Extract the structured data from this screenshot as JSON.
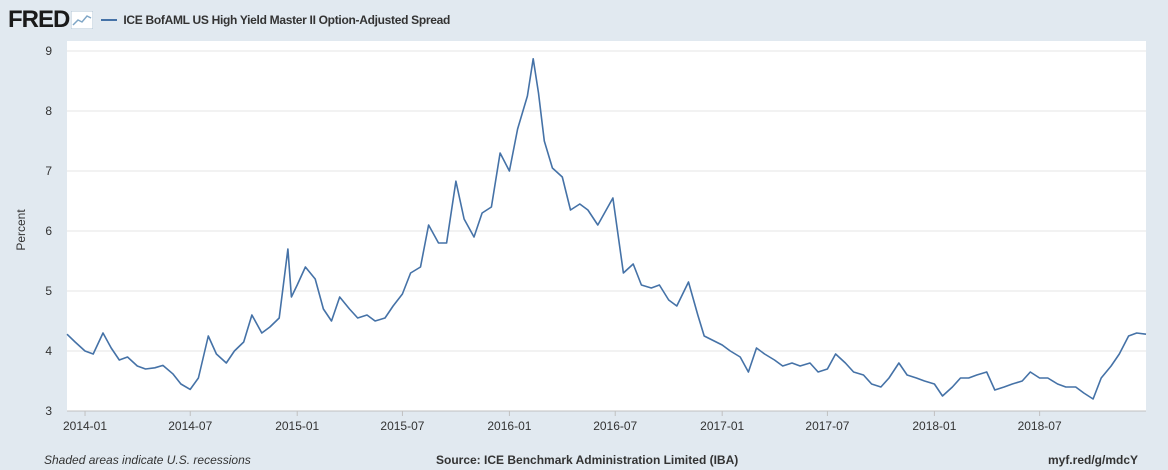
{
  "brand": {
    "logo_text": "FRED"
  },
  "footer": {
    "recession_note": "Shaded areas indicate U.S. recessions",
    "source": "Source: ICE Benchmark Administration Limited (IBA)",
    "short_url": "myf.red/g/mdcY"
  },
  "colors": {
    "line": "#4572a7",
    "background": "#e1e9f0",
    "plot_bg": "#ffffff",
    "grid": "#e6e6e6"
  },
  "chart_data": {
    "type": "line",
    "title": "ICE BofAML US High Yield Master II Option-Adjusted Spread",
    "xlabel": "",
    "ylabel": "Percent",
    "xlim": [
      "2013-12-01",
      "2018-12-31"
    ],
    "ylim": [
      3,
      9
    ],
    "yticks": [
      "3",
      "4",
      "5",
      "6",
      "7",
      "8",
      "9"
    ],
    "xticks": [
      {
        "date": "2014-01-01",
        "label": "2014-01"
      },
      {
        "date": "2014-07-01",
        "label": "2014-07"
      },
      {
        "date": "2015-01-01",
        "label": "2015-01"
      },
      {
        "date": "2015-07-01",
        "label": "2015-07"
      },
      {
        "date": "2016-01-01",
        "label": "2016-01"
      },
      {
        "date": "2016-07-01",
        "label": "2016-07"
      },
      {
        "date": "2017-01-01",
        "label": "2017-01"
      },
      {
        "date": "2017-07-01",
        "label": "2017-07"
      },
      {
        "date": "2018-01-01",
        "label": "2018-01"
      },
      {
        "date": "2018-07-01",
        "label": "2018-07"
      }
    ],
    "grid": true,
    "series": [
      {
        "name": "ICE BofAML US High Yield Master II Option-Adjusted Spread",
        "points": [
          [
            "2013-12-01",
            4.28
          ],
          [
            "2013-12-15",
            4.15
          ],
          [
            "2014-01-01",
            4.0
          ],
          [
            "2014-01-15",
            3.95
          ],
          [
            "2014-02-01",
            4.3
          ],
          [
            "2014-02-15",
            4.05
          ],
          [
            "2014-03-01",
            3.85
          ],
          [
            "2014-03-15",
            3.9
          ],
          [
            "2014-04-01",
            3.75
          ],
          [
            "2014-04-15",
            3.7
          ],
          [
            "2014-05-01",
            3.72
          ],
          [
            "2014-05-15",
            3.76
          ],
          [
            "2014-06-01",
            3.62
          ],
          [
            "2014-06-15",
            3.45
          ],
          [
            "2014-07-01",
            3.36
          ],
          [
            "2014-07-15",
            3.55
          ],
          [
            "2014-08-01",
            4.25
          ],
          [
            "2014-08-15",
            3.95
          ],
          [
            "2014-09-01",
            3.8
          ],
          [
            "2014-09-15",
            4.0
          ],
          [
            "2014-10-01",
            4.15
          ],
          [
            "2014-10-15",
            4.6
          ],
          [
            "2014-11-01",
            4.3
          ],
          [
            "2014-11-15",
            4.4
          ],
          [
            "2014-12-01",
            4.55
          ],
          [
            "2014-12-16",
            5.7
          ],
          [
            "2014-12-22",
            4.9
          ],
          [
            "2015-01-01",
            5.1
          ],
          [
            "2015-01-15",
            5.4
          ],
          [
            "2015-02-01",
            5.2
          ],
          [
            "2015-02-15",
            4.7
          ],
          [
            "2015-03-01",
            4.5
          ],
          [
            "2015-03-15",
            4.9
          ],
          [
            "2015-04-01",
            4.7
          ],
          [
            "2015-04-15",
            4.55
          ],
          [
            "2015-05-01",
            4.6
          ],
          [
            "2015-05-15",
            4.5
          ],
          [
            "2015-06-01",
            4.55
          ],
          [
            "2015-06-15",
            4.75
          ],
          [
            "2015-07-01",
            4.95
          ],
          [
            "2015-07-15",
            5.3
          ],
          [
            "2015-08-01",
            5.4
          ],
          [
            "2015-08-15",
            6.1
          ],
          [
            "2015-09-01",
            5.8
          ],
          [
            "2015-09-15",
            5.8
          ],
          [
            "2015-10-01",
            6.83
          ],
          [
            "2015-10-15",
            6.2
          ],
          [
            "2015-11-01",
            5.9
          ],
          [
            "2015-11-15",
            6.3
          ],
          [
            "2015-12-01",
            6.4
          ],
          [
            "2015-12-16",
            7.3
          ],
          [
            "2016-01-01",
            7.0
          ],
          [
            "2016-01-15",
            7.7
          ],
          [
            "2016-02-01",
            8.25
          ],
          [
            "2016-02-11",
            8.87
          ],
          [
            "2016-02-20",
            8.3
          ],
          [
            "2016-03-01",
            7.5
          ],
          [
            "2016-03-15",
            7.05
          ],
          [
            "2016-04-01",
            6.9
          ],
          [
            "2016-04-15",
            6.35
          ],
          [
            "2016-05-01",
            6.45
          ],
          [
            "2016-05-15",
            6.35
          ],
          [
            "2016-06-01",
            6.1
          ],
          [
            "2016-06-27",
            6.55
          ],
          [
            "2016-07-15",
            5.3
          ],
          [
            "2016-08-01",
            5.45
          ],
          [
            "2016-08-15",
            5.1
          ],
          [
            "2016-09-01",
            5.05
          ],
          [
            "2016-09-15",
            5.1
          ],
          [
            "2016-10-01",
            4.85
          ],
          [
            "2016-10-15",
            4.75
          ],
          [
            "2016-11-04",
            5.15
          ],
          [
            "2016-11-20",
            4.6
          ],
          [
            "2016-12-01",
            4.25
          ],
          [
            "2017-01-01",
            4.1
          ],
          [
            "2017-01-15",
            4.0
          ],
          [
            "2017-02-01",
            3.9
          ],
          [
            "2017-02-15",
            3.65
          ],
          [
            "2017-03-01",
            4.05
          ],
          [
            "2017-03-15",
            3.95
          ],
          [
            "2017-04-01",
            3.85
          ],
          [
            "2017-04-15",
            3.75
          ],
          [
            "2017-05-01",
            3.8
          ],
          [
            "2017-05-15",
            3.75
          ],
          [
            "2017-06-01",
            3.8
          ],
          [
            "2017-06-15",
            3.65
          ],
          [
            "2017-07-01",
            3.7
          ],
          [
            "2017-07-15",
            3.95
          ],
          [
            "2017-08-01",
            3.8
          ],
          [
            "2017-08-15",
            3.65
          ],
          [
            "2017-09-01",
            3.6
          ],
          [
            "2017-09-15",
            3.45
          ],
          [
            "2017-10-01",
            3.4
          ],
          [
            "2017-10-15",
            3.55
          ],
          [
            "2017-11-01",
            3.8
          ],
          [
            "2017-11-15",
            3.6
          ],
          [
            "2017-12-01",
            3.55
          ],
          [
            "2017-12-15",
            3.5
          ],
          [
            "2018-01-01",
            3.45
          ],
          [
            "2018-01-15",
            3.25
          ],
          [
            "2018-02-01",
            3.4
          ],
          [
            "2018-02-15",
            3.55
          ],
          [
            "2018-03-01",
            3.55
          ],
          [
            "2018-03-15",
            3.6
          ],
          [
            "2018-04-01",
            3.65
          ],
          [
            "2018-04-15",
            3.35
          ],
          [
            "2018-05-01",
            3.4
          ],
          [
            "2018-05-15",
            3.45
          ],
          [
            "2018-06-01",
            3.5
          ],
          [
            "2018-06-15",
            3.65
          ],
          [
            "2018-07-01",
            3.55
          ],
          [
            "2018-07-15",
            3.55
          ],
          [
            "2018-08-01",
            3.45
          ],
          [
            "2018-08-15",
            3.4
          ],
          [
            "2018-09-01",
            3.4
          ],
          [
            "2018-09-15",
            3.3
          ],
          [
            "2018-10-01",
            3.2
          ],
          [
            "2018-10-15",
            3.55
          ],
          [
            "2018-11-01",
            3.75
          ],
          [
            "2018-11-15",
            3.95
          ],
          [
            "2018-12-01",
            4.25
          ],
          [
            "2018-12-15",
            4.3
          ],
          [
            "2018-12-31",
            4.28
          ]
        ]
      }
    ]
  }
}
